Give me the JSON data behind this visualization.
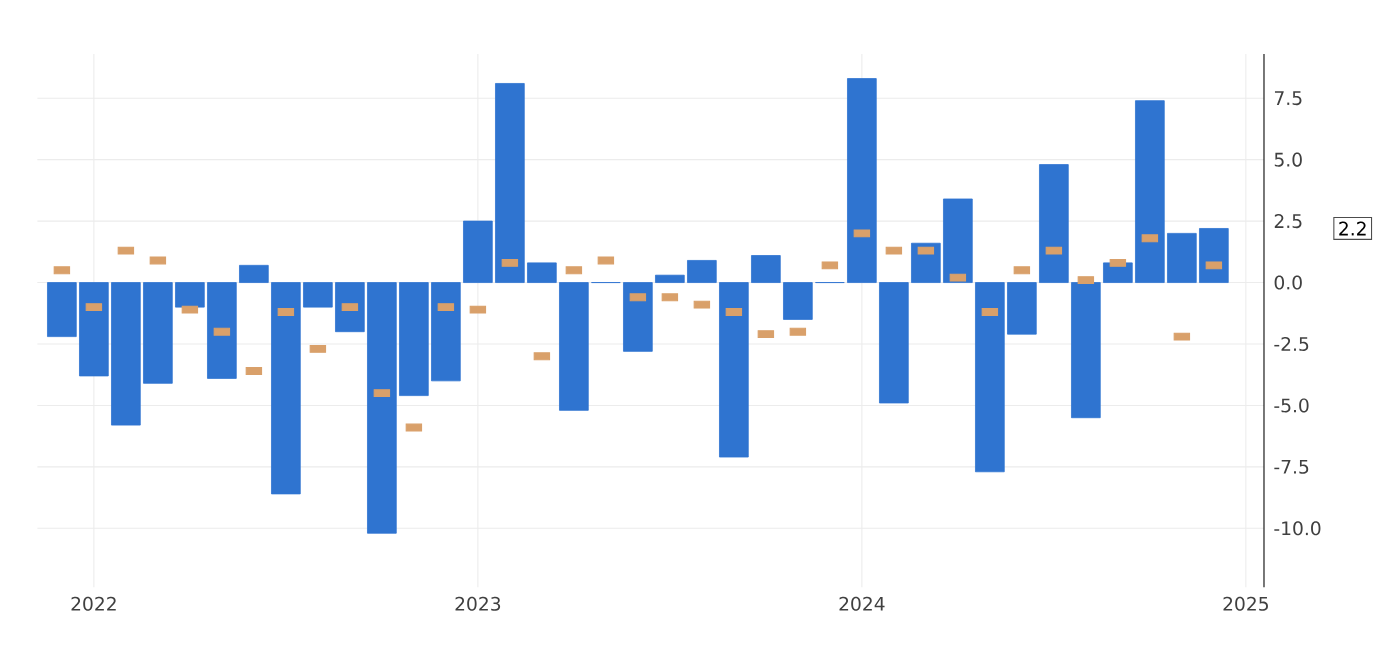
{
  "chart_data": {
    "type": "bar",
    "x": [
      "2021-12",
      "2022-01",
      "2022-02",
      "2022-03",
      "2022-04",
      "2022-05",
      "2022-06",
      "2022-07",
      "2022-08",
      "2022-09",
      "2022-10",
      "2022-11",
      "2022-12",
      "2023-01",
      "2023-02",
      "2023-03",
      "2023-04",
      "2023-05",
      "2023-06",
      "2023-07",
      "2023-08",
      "2023-09",
      "2023-10",
      "2023-11",
      "2023-12",
      "2024-01",
      "2024-02",
      "2024-03",
      "2024-04",
      "2024-05",
      "2024-06",
      "2024-07",
      "2024-08",
      "2024-09",
      "2024-10",
      "2024-11",
      "2024-12"
    ],
    "series": [
      {
        "color": "#2f74d0",
        "values": [
          -2.2,
          -3.8,
          -5.8,
          -4.1,
          -1.0,
          -3.9,
          0.7,
          -8.6,
          -1.0,
          -2.0,
          -10.2,
          -4.6,
          -4.0,
          2.5,
          8.1,
          0.8,
          -5.2,
          0.0,
          -2.8,
          0.3,
          0.9,
          -7.1,
          1.1,
          -1.5,
          0.0,
          8.3,
          -4.9,
          1.6,
          3.4,
          -7.7,
          -2.1,
          4.8,
          -5.5,
          0.8,
          7.4,
          2.0,
          2.2
        ]
      },
      {
        "type": "scatter",
        "marker": "square",
        "color": "#d9a06a",
        "x": [
          "2021-12",
          "2022-01",
          "2022-02",
          "2022-03",
          "2022-04",
          "2022-05",
          "2022-06",
          "2022-07",
          "2022-08",
          "2022-09",
          "2022-10",
          "2022-11",
          "2022-12",
          "2023-01",
          "2023-02",
          "2023-03",
          "2023-04",
          "2023-05",
          "2023-06",
          "2023-07",
          "2023-08",
          "2023-09",
          "2023-10",
          "2023-11",
          "2023-12",
          "2024-01",
          "2024-02",
          "2024-03",
          "2024-04",
          "2024-05",
          "2024-06",
          "2024-07",
          "2024-08",
          "2024-09",
          "2024-10",
          "2024-11",
          "2024-12"
        ],
        "values": [
          0.5,
          -1.0,
          1.3,
          0.9,
          -1.1,
          -2.0,
          -3.6,
          -1.2,
          -2.7,
          -1.0,
          -4.5,
          -5.9,
          -1.0,
          -1.1,
          0.8,
          -3.0,
          0.5,
          0.9,
          -0.6,
          -0.6,
          -0.9,
          -1.2,
          -2.1,
          -2.0,
          0.7,
          2.0,
          1.3,
          1.3,
          0.2,
          -1.2,
          0.5,
          1.3,
          0.1,
          0.8,
          1.8,
          -2.2,
          0.7
        ]
      }
    ],
    "xlim": [
      "2021-11-08",
      "2025-01-18"
    ],
    "xticks": [
      "2022",
      "2023",
      "2024",
      "2025"
    ],
    "ylim": [
      -12.4,
      9.3
    ],
    "yticks": [
      {
        "value": -10,
        "label": "-10.0"
      },
      {
        "value": -7.5,
        "label": "-7.5"
      },
      {
        "value": -5,
        "label": "-5.0"
      },
      {
        "value": -2.5,
        "label": "-2.5"
      },
      {
        "value": 0,
        "label": "0.0"
      },
      {
        "value": 2.5,
        "label": "2.5"
      },
      {
        "value": 5,
        "label": "5.0"
      },
      {
        "value": 7.5,
        "label": "7.5"
      }
    ],
    "annotations": [
      "2.2"
    ],
    "grid": true
  }
}
